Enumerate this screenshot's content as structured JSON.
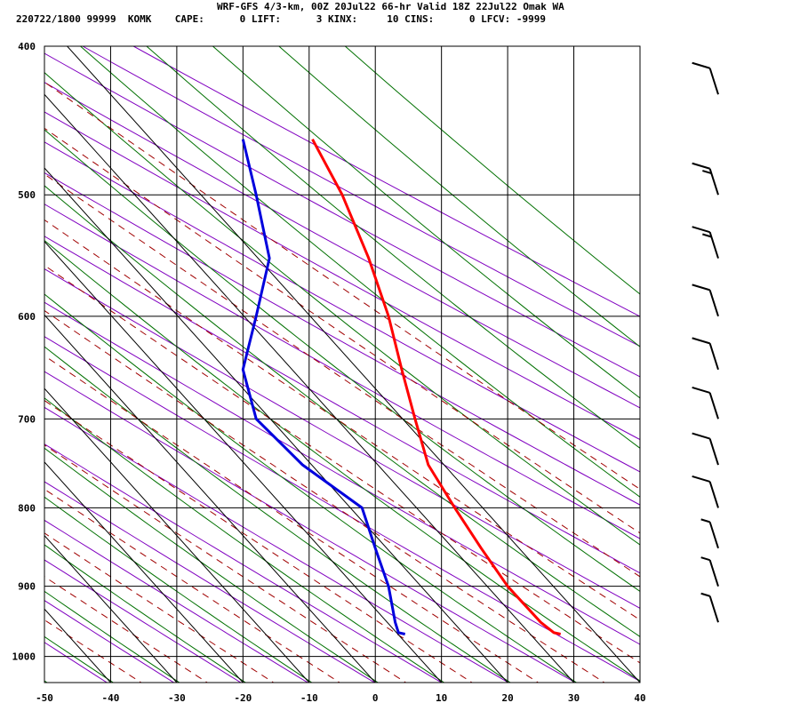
{
  "header": {
    "line1": "WRF-GFS 4/3-km, 00Z 20Jul22 66-hr Valid 18Z 22Jul22 Omak WA",
    "line2": "220722/1800 99999  KOMK    CAPE:      0 LIFT:      3 KINX:     10 CINS:      0 LFCV: -9999"
  },
  "chart_data": {
    "type": "line",
    "title": "WRF-GFS 4/3-km, 00Z 20Jul22 66-hr Valid 18Z 22Jul22 Omak WA",
    "xlabel": "",
    "ylabel": "",
    "x_ticks": [
      "-50",
      "-40",
      "-30",
      "-20",
      "-10",
      "0",
      "10",
      "20",
      "30",
      "40"
    ],
    "p_ticks": [
      "400",
      "500",
      "600",
      "700",
      "800",
      "900",
      "1000"
    ],
    "xlim": [
      -50,
      40
    ],
    "plim": [
      400,
      1040
    ],
    "skew": true,
    "grid": true,
    "series": [
      {
        "color": "#ff0000",
        "points": [
          [
            -9.5,
            460
          ],
          [
            -5,
            500
          ],
          [
            -1,
            550
          ],
          [
            2,
            600
          ],
          [
            4,
            650
          ],
          [
            6,
            700
          ],
          [
            8,
            750
          ],
          [
            12,
            800
          ],
          [
            16,
            850
          ],
          [
            20,
            900
          ],
          [
            25,
            950
          ],
          [
            27,
            965
          ],
          [
            28,
            967
          ]
        ]
      },
      {
        "color": "#0000dd",
        "points": [
          [
            -20,
            460
          ],
          [
            -18,
            500
          ],
          [
            -16,
            550
          ],
          [
            -18,
            600
          ],
          [
            -20,
            650
          ],
          [
            -18,
            700
          ],
          [
            -11,
            750
          ],
          [
            -2,
            800
          ],
          [
            0,
            850
          ],
          [
            2,
            900
          ],
          [
            3,
            950
          ],
          [
            3.5,
            965
          ],
          [
            4.5,
            967
          ]
        ]
      }
    ],
    "wind_barbs": [
      {
        "p": 430,
        "speed": 10
      },
      {
        "p": 500,
        "speed": 15
      },
      {
        "p": 550,
        "speed": 15
      },
      {
        "p": 600,
        "speed": 10
      },
      {
        "p": 650,
        "speed": 10
      },
      {
        "p": 700,
        "speed": 10
      },
      {
        "p": 750,
        "speed": 10
      },
      {
        "p": 800,
        "speed": 10
      },
      {
        "p": 850,
        "speed": 5
      },
      {
        "p": 900,
        "speed": 5
      },
      {
        "p": 950,
        "speed": 5
      }
    ],
    "colors": {
      "temperature": "#ff0000",
      "dewpoint": "#0000dd",
      "dry_adiabats": "#8000c0",
      "mixing_ratio": "#007000",
      "moist_adiabats": "#a00000",
      "grid": "#000000"
    }
  }
}
